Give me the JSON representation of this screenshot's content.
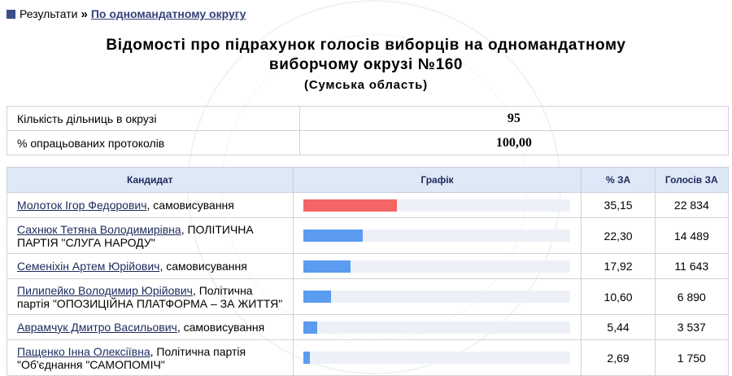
{
  "breadcrumb": {
    "root": "Результати",
    "separator": "»",
    "current": "По одномандатному округу"
  },
  "page": {
    "title_line1": "Відомості про підрахунок голосів виборців на одномандатному",
    "title_line2": "виборчому окрузі №160",
    "region": "(Сумська область)"
  },
  "summary": [
    {
      "label": "Кількість дільниць в окрузі",
      "value": "95"
    },
    {
      "label": "% опрацьованих протоколів",
      "value": "100,00"
    }
  ],
  "table": {
    "headers": {
      "candidate": "Кандидат",
      "graph": "Графік",
      "percent": "% ЗА",
      "votes": "Голосів ЗА"
    },
    "rows": [
      {
        "name": "Молоток Ігор Федорович",
        "party": ", самовисування",
        "percent": "35,15",
        "votes": "22 834",
        "share": 35.15
      },
      {
        "name": "Сахнюк Тетяна Володимирівна",
        "party": ", ПОЛІТИЧНА ПАРТІЯ \"СЛУГА НАРОДУ\"",
        "percent": "22,30",
        "votes": "14 489",
        "share": 22.3
      },
      {
        "name": "Семеніхін Артем Юрійович",
        "party": ", самовисування",
        "percent": "17,92",
        "votes": "11 643",
        "share": 17.92
      },
      {
        "name": "Пилипейко Володимир Юрійович",
        "party": ", Політична партія \"ОПОЗИЦІЙНА ПЛАТФОРМА – ЗА ЖИТТЯ\"",
        "percent": "10,60",
        "votes": "6 890",
        "share": 10.6
      },
      {
        "name": "Аврамчук Дмитро Васильович",
        "party": ", самовисування",
        "percent": "5,44",
        "votes": "3 537",
        "share": 5.44
      },
      {
        "name": "Пащенко Інна Олексіївна",
        "party": ", Політична партія \"Об'єднання \"САМОПОМІЧ\"",
        "percent": "2,69",
        "votes": "1 750",
        "share": 2.69
      }
    ]
  },
  "colors": {
    "lead_bar": "#f56565",
    "bar": "#5b9bf0",
    "header_bg": "#dfe8f6"
  }
}
